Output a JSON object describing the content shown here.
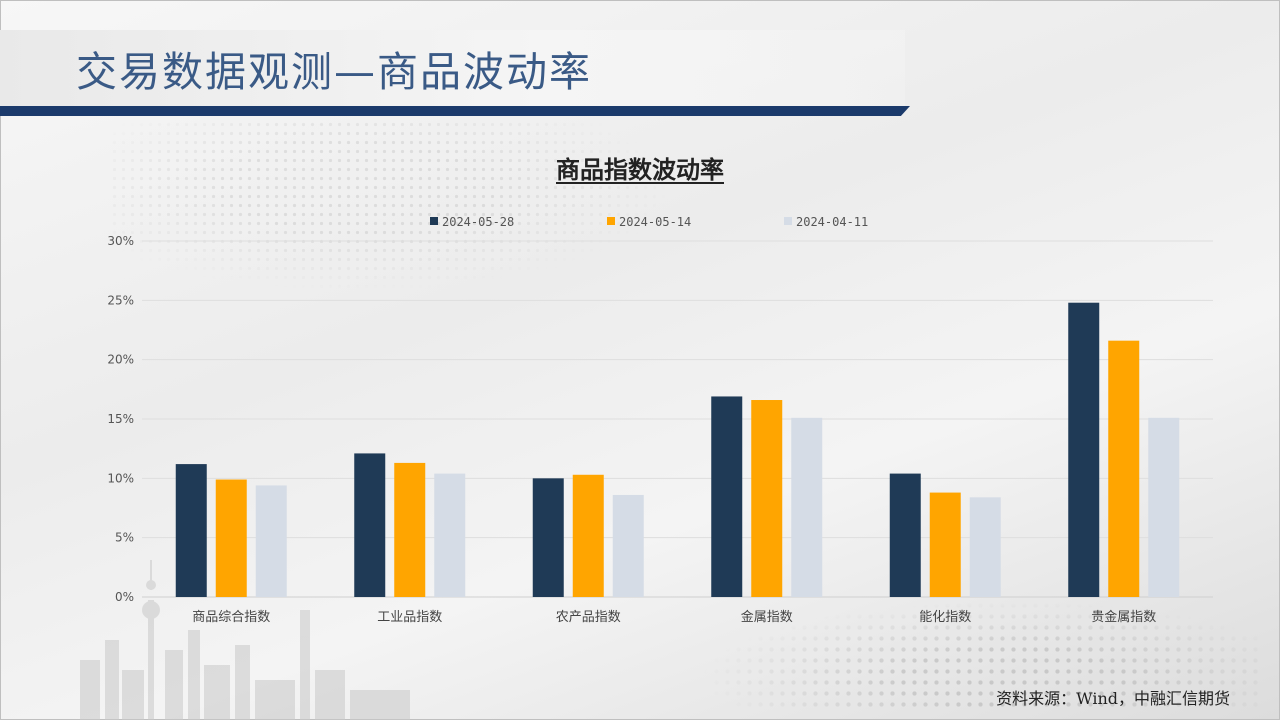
{
  "header": {
    "title": "交易数据观测—商品波动率"
  },
  "footer": {
    "source": "资料来源：Wind，中融汇信期货"
  },
  "colors": {
    "title_text": "#3a5a86",
    "title_rule": "#1b3a6b",
    "series": [
      "#1f3a56",
      "#ffa500",
      "#d5dce6"
    ]
  },
  "chart_data": {
    "type": "bar",
    "title": "商品指数波动率",
    "xlabel": "",
    "ylabel": "",
    "categories": [
      "商品综合指数",
      "工业品指数",
      "农产品指数",
      "金属指数",
      "能化指数",
      "贵金属指数"
    ],
    "series": [
      {
        "name": "2024-05-28",
        "values": [
          11.2,
          12.1,
          10.0,
          16.9,
          10.4,
          24.8
        ]
      },
      {
        "name": "2024-05-14",
        "values": [
          9.9,
          11.3,
          10.3,
          16.6,
          8.8,
          21.6
        ]
      },
      {
        "name": "2024-04-11",
        "values": [
          9.4,
          10.4,
          8.6,
          15.1,
          8.4,
          15.1
        ]
      }
    ],
    "yticks": [
      "0%",
      "5%",
      "10%",
      "15%",
      "20%",
      "25%",
      "30%"
    ],
    "ylim": [
      0,
      30
    ],
    "grid": true,
    "legend_position": "top-center"
  }
}
